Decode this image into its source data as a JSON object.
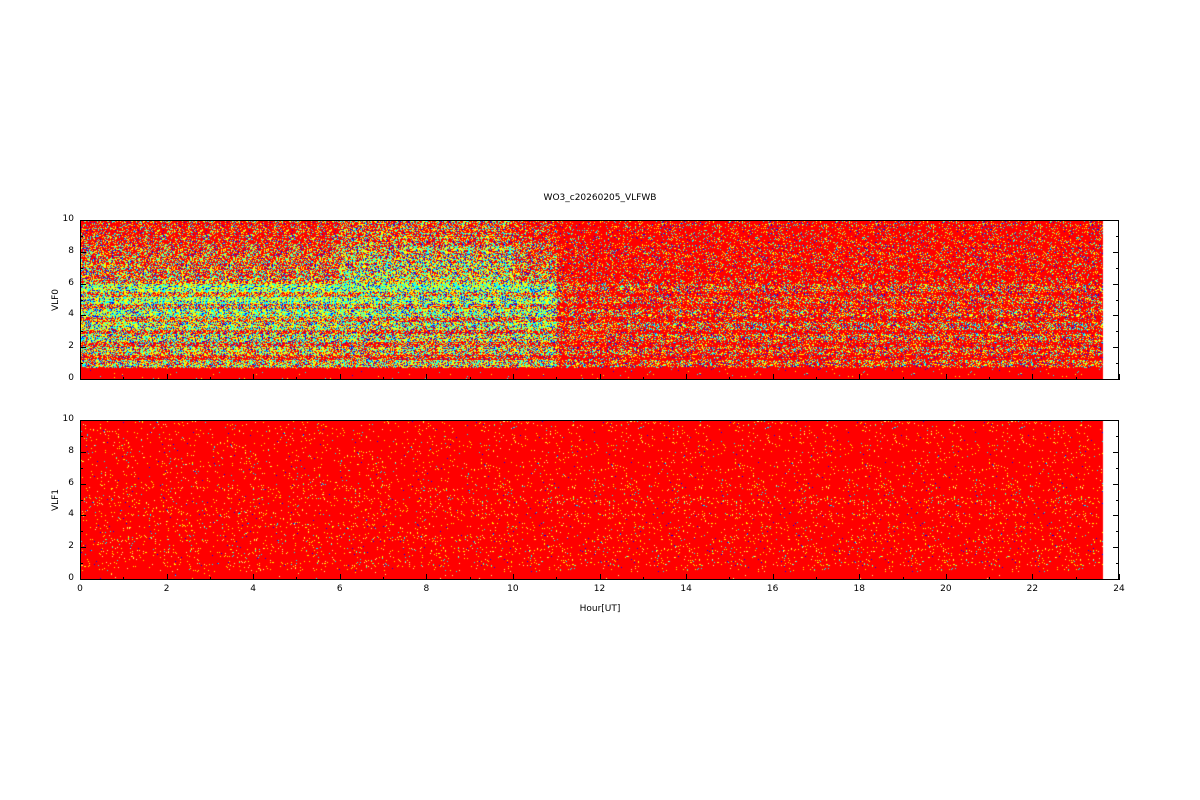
{
  "chart_data": [
    {
      "type": "heatmap",
      "title": "WO3_c20260205_VLFWB",
      "ylabel": "VLF0",
      "xlabel": "",
      "xlim": [
        0,
        24
      ],
      "ylim": [
        0,
        10
      ],
      "x_ticks": [
        "0",
        "2",
        "4",
        "6",
        "8",
        "10",
        "12",
        "14",
        "16",
        "18",
        "20",
        "22",
        "24"
      ],
      "y_ticks": [
        "0",
        "2",
        "4",
        "6",
        "8",
        "10"
      ],
      "data_x_range": [
        0,
        23.65
      ],
      "colormap": [
        "#ff0000",
        "#ffff00",
        "#00ffff",
        "#0000ff"
      ],
      "description_of_values": "high activity (yellow/cyan/blue) 0-10 UT at 2-10, bands near 1, 1.8, 2.6, 3.4, 4.2, 5; mostly red after 11 UT"
    },
    {
      "type": "heatmap",
      "ylabel": "VLF1",
      "xlabel": "Hour[UT]",
      "xlim": [
        0,
        24
      ],
      "ylim": [
        0,
        10
      ],
      "x_ticks": [
        "0",
        "2",
        "4",
        "6",
        "8",
        "10",
        "12",
        "14",
        "16",
        "18",
        "20",
        "22",
        "24"
      ],
      "y_ticks": [
        "0",
        "2",
        "4",
        "6",
        "8",
        "10"
      ],
      "data_x_range": [
        0,
        23.65
      ],
      "colormap": [
        "#ff0000",
        "#ffff00",
        "#00ffff",
        "#0000ff"
      ]
    }
  ]
}
